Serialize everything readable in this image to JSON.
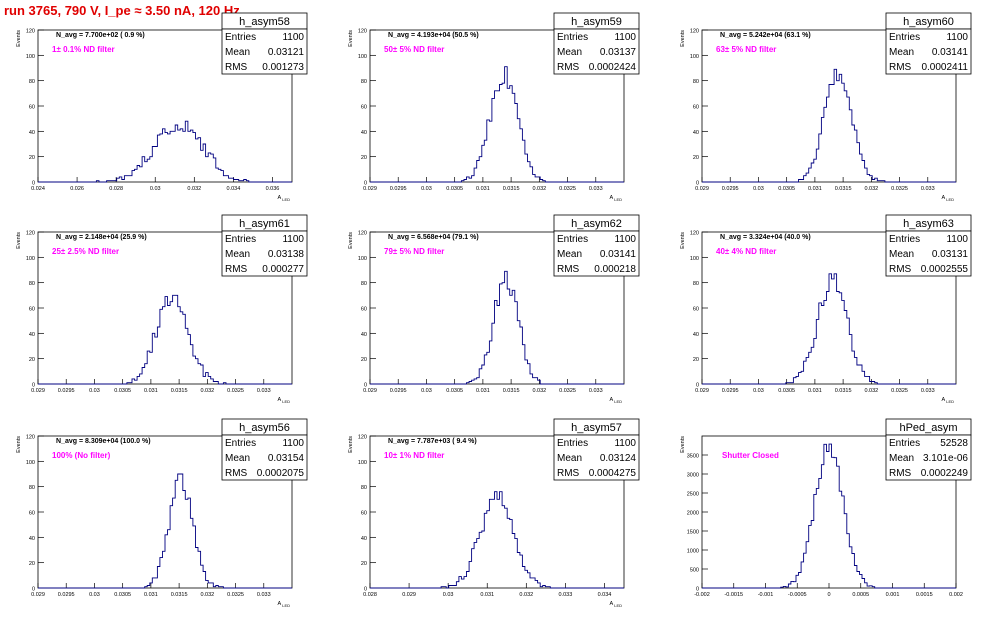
{
  "run_title": "run 3765,   790 V, I_pe ≈ 3.50 nA, 120 Hz",
  "y_axis_label": "Events",
  "stats_labels": {
    "entries": "Entries",
    "mean": "Mean",
    "rms": "RMS"
  },
  "chart_data": [
    {
      "type": "histogram",
      "title": "h_asym58",
      "navg": "N_avg = 7.700e+02 ( 0.9 %)",
      "filter": "1± 0.1% ND filter",
      "stats": {
        "entries": "1100",
        "mean": "0.03121",
        "rms": "0.001273"
      },
      "xlabel": "A_LED",
      "xlim": [
        0.024,
        0.037
      ],
      "ylim": [
        0,
        120
      ],
      "xticks": [
        0.024,
        0.026,
        0.028,
        0.03,
        0.032,
        0.034,
        0.036
      ],
      "xtick_labels": [
        "0.024",
        "0.026",
        "0.028",
        "0.03",
        "0.032",
        "0.034",
        "0.036"
      ],
      "yticks": [
        0,
        20,
        40,
        60,
        80,
        100,
        120
      ],
      "peak": {
        "center": 0.0312,
        "sigma": 0.00125,
        "height": 46
      }
    },
    {
      "type": "histogram",
      "title": "h_asym59",
      "navg": "N_avg = 4.193e+04 (50.5 %)",
      "filter": "50± 5% ND filter",
      "stats": {
        "entries": "1100",
        "mean": "0.03137",
        "rms": "0.0002424"
      },
      "xlabel": "A_LED",
      "xlim": [
        0.029,
        0.0335
      ],
      "ylim": [
        0,
        120
      ],
      "xticks": [
        0.029,
        0.0295,
        0.03,
        0.0305,
        0.031,
        0.0315,
        0.032,
        0.0325,
        0.033
      ],
      "xtick_labels": [
        "0.029",
        "0.0295",
        "0.03",
        "0.0305",
        "0.031",
        "0.0315",
        "0.032",
        "0.0325",
        "0.033"
      ],
      "yticks": [
        0,
        20,
        40,
        60,
        80,
        100,
        120
      ],
      "peak": {
        "center": 0.03137,
        "sigma": 0.00024,
        "height": 85
      }
    },
    {
      "type": "histogram",
      "title": "h_asym60",
      "navg": "N_avg = 5.242e+04 (63.1 %)",
      "filter": "63± 5% ND filter",
      "stats": {
        "entries": "1100",
        "mean": "0.03141",
        "rms": "0.0002411"
      },
      "xlabel": "A_LED",
      "xlim": [
        0.029,
        0.0335
      ],
      "ylim": [
        0,
        120
      ],
      "xticks": [
        0.029,
        0.0295,
        0.03,
        0.0305,
        0.031,
        0.0315,
        0.032,
        0.0325,
        0.033
      ],
      "xtick_labels": [
        "0.029",
        "0.0295",
        "0.03",
        "0.0305",
        "0.031",
        "0.0315",
        "0.032",
        "0.0325",
        "0.033"
      ],
      "yticks": [
        0,
        20,
        40,
        60,
        80,
        100,
        120
      ],
      "peak": {
        "center": 0.03141,
        "sigma": 0.00024,
        "height": 87
      }
    },
    {
      "type": "histogram",
      "title": "h_asym61",
      "navg": "N_avg = 2.148e+04 (25.9 %)",
      "filter": "25± 2.5% ND filter",
      "stats": {
        "entries": "1100",
        "mean": "0.03138",
        "rms": "0.000277"
      },
      "xlabel": "A_LED",
      "xlim": [
        0.029,
        0.0335
      ],
      "ylim": [
        0,
        120
      ],
      "xticks": [
        0.029,
        0.0295,
        0.03,
        0.0305,
        0.031,
        0.0315,
        0.032,
        0.0325,
        0.033
      ],
      "xtick_labels": [
        "0.029",
        "0.0295",
        "0.03",
        "0.0305",
        "0.031",
        "0.0315",
        "0.032",
        "0.0325",
        "0.033"
      ],
      "yticks": [
        0,
        20,
        40,
        60,
        80,
        100,
        120
      ],
      "peak": {
        "center": 0.03138,
        "sigma": 0.00028,
        "height": 70
      }
    },
    {
      "type": "histogram",
      "title": "h_asym62",
      "navg": "N_avg = 6.568e+04 (79.1 %)",
      "filter": "79± 5% ND filter",
      "stats": {
        "entries": "1100",
        "mean": "0.03141",
        "rms": "0.000218"
      },
      "xlabel": "A_LED",
      "xlim": [
        0.029,
        0.0335
      ],
      "ylim": [
        0,
        120
      ],
      "xticks": [
        0.029,
        0.0295,
        0.03,
        0.0305,
        0.031,
        0.0315,
        0.032,
        0.0325,
        0.033
      ],
      "xtick_labels": [
        "0.029",
        "0.0295",
        "0.03",
        "0.0305",
        "0.031",
        "0.0315",
        "0.032",
        "0.0325",
        "0.033"
      ],
      "yticks": [
        0,
        20,
        40,
        60,
        80,
        100,
        120
      ],
      "peak": {
        "center": 0.03141,
        "sigma": 0.00022,
        "height": 84
      }
    },
    {
      "type": "histogram",
      "title": "h_asym63",
      "navg": "N_avg = 3.324e+04 (40.0 %)",
      "filter": "40± 4% ND filter",
      "stats": {
        "entries": "1100",
        "mean": "0.03131",
        "rms": "0.0002555"
      },
      "xlabel": "A_LED",
      "xlim": [
        0.029,
        0.0335
      ],
      "ylim": [
        0,
        120
      ],
      "xticks": [
        0.029,
        0.0295,
        0.03,
        0.0305,
        0.031,
        0.0315,
        0.032,
        0.0325,
        0.033
      ],
      "xtick_labels": [
        "0.029",
        "0.0295",
        "0.03",
        "0.0305",
        "0.031",
        "0.0315",
        "0.032",
        "0.0325",
        "0.033"
      ],
      "yticks": [
        0,
        20,
        40,
        60,
        80,
        100,
        120
      ],
      "peak": {
        "center": 0.03131,
        "sigma": 0.00026,
        "height": 83
      }
    },
    {
      "type": "histogram",
      "title": "h_asym56",
      "navg": "N_avg = 8.309e+04 (100.0 %)",
      "filter": "100% (No filter)",
      "stats": {
        "entries": "1100",
        "mean": "0.03154",
        "rms": "0.0002075"
      },
      "xlabel": "A_LED",
      "xlim": [
        0.029,
        0.0335
      ],
      "ylim": [
        0,
        120
      ],
      "xticks": [
        0.029,
        0.0295,
        0.03,
        0.0305,
        0.031,
        0.0315,
        0.032,
        0.0325,
        0.033
      ],
      "xtick_labels": [
        "0.029",
        "0.0295",
        "0.03",
        "0.0305",
        "0.031",
        "0.0315",
        "0.032",
        "0.0325",
        "0.033"
      ],
      "yticks": [
        0,
        20,
        40,
        60,
        80,
        100,
        120
      ],
      "peak": {
        "center": 0.03154,
        "sigma": 0.00021,
        "height": 86
      }
    },
    {
      "type": "histogram",
      "title": "h_asym57",
      "navg": "N_avg = 7.787e+03 ( 9.4 %)",
      "filter": "10± 1% ND filter",
      "stats": {
        "entries": "1100",
        "mean": "0.03124",
        "rms": "0.0004275"
      },
      "xlabel": "A_LED",
      "xlim": [
        0.028,
        0.0345
      ],
      "ylim": [
        0,
        120
      ],
      "xticks": [
        0.028,
        0.029,
        0.03,
        0.031,
        0.032,
        0.033,
        0.034
      ],
      "xtick_labels": [
        "0.028",
        "0.029",
        "0.03",
        "0.031",
        "0.032",
        "0.033",
        "0.034"
      ],
      "yticks": [
        0,
        20,
        40,
        60,
        80,
        100,
        120
      ],
      "peak": {
        "center": 0.03124,
        "sigma": 0.00043,
        "height": 71
      }
    },
    {
      "type": "histogram",
      "title": "hPed_asym",
      "navg": "",
      "filter": "Shutter Closed",
      "stats": {
        "entries": "52528",
        "mean": "3.101e-06",
        "rms": "0.0002249"
      },
      "xlabel": "",
      "xlim": [
        -0.002,
        0.002
      ],
      "ylim": [
        0,
        4000
      ],
      "xticks": [
        -0.002,
        -0.0015,
        -0.001,
        -0.0005,
        0,
        0.0005,
        0.001,
        0.0015,
        0.002
      ],
      "xtick_labels": [
        "-0.002",
        "-0.0015",
        "-0.001",
        "-0.0005",
        "0",
        "0.0005",
        "0.001",
        "0.0015",
        "0.002"
      ],
      "yticks": [
        0,
        500,
        1000,
        1500,
        2000,
        2500,
        3000,
        3500
      ],
      "peak": {
        "center": 0.0,
        "sigma": 0.000225,
        "height": 3700
      }
    }
  ]
}
